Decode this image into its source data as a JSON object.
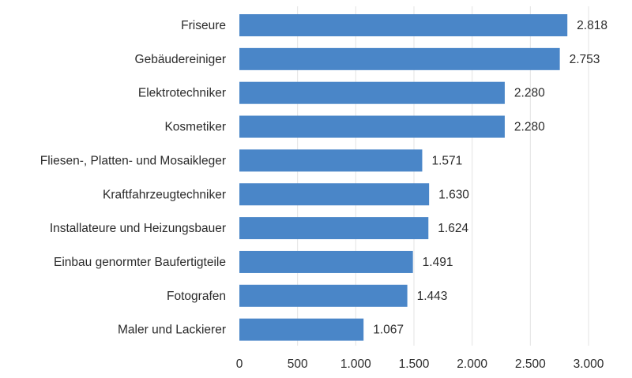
{
  "chart_data": {
    "type": "bar",
    "orientation": "horizontal",
    "categories": [
      "Friseure",
      "Gebäudereiniger",
      "Elektrotechniker",
      "Kosmetiker",
      "Fliesen-, Platten- und Mosaikleger",
      "Kraftfahrzeugtechniker",
      "Installateure und Heizungsbauer",
      "Einbau genormter Baufertigteile",
      "Fotografen",
      "Maler und Lackierer"
    ],
    "values": [
      2818,
      2753,
      2280,
      2280,
      1571,
      1630,
      1624,
      1491,
      1443,
      1067
    ],
    "value_labels": [
      "2.818",
      "2.753",
      "2.280",
      "2.280",
      "1.571",
      "1.630",
      "1.624",
      "1.491",
      "1.443",
      "1.067"
    ],
    "xlim": [
      0,
      3000
    ],
    "xticks": [
      0,
      500,
      1000,
      1500,
      2000,
      2500,
      3000
    ],
    "xtick_labels": [
      "0",
      "500",
      "1.000",
      "1.500",
      "2.000",
      "2.500",
      "3.000"
    ],
    "grid": "vertical",
    "legend": "none",
    "title": "",
    "xlabel": "",
    "ylabel": "",
    "colors": {
      "bar": "#4a86c8",
      "grid": "#e3e3e3",
      "text": "#2b2b2b"
    }
  }
}
